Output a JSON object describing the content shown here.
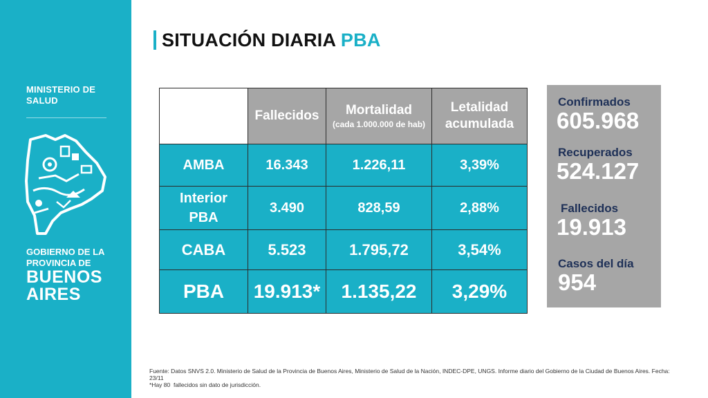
{
  "sidebar": {
    "ministry": [
      "MINISTERIO DE",
      "SALUD"
    ],
    "government_small": [
      "GOBIERNO DE LA",
      "PROVINCIA DE"
    ],
    "government_big": [
      "BUENOS",
      "AIRES"
    ]
  },
  "title": {
    "main": "SITUACIÓN DIARIA",
    "accent": "PBA"
  },
  "table": {
    "headers": {
      "fallecidos": "Fallecidos",
      "mortalidad": "Mortalidad",
      "mortalidad_sub": "(cada 1.000.000 de hab)",
      "letalidad": "Letalidad acumulada"
    },
    "rows": [
      {
        "region": "AMBA",
        "fallecidos": "16.343",
        "mortalidad": "1.226,11",
        "letalidad": "3,39%"
      },
      {
        "region": "Interior PBA",
        "fallecidos": "3.490",
        "mortalidad": "828,59",
        "letalidad": "2,88%"
      },
      {
        "region": "CABA",
        "fallecidos": "5.523",
        "mortalidad": "1.795,72",
        "letalidad": "3,54%"
      },
      {
        "region": "PBA",
        "fallecidos": "19.913*",
        "mortalidad": "1.135,22",
        "letalidad": "3,29%"
      }
    ]
  },
  "summary": {
    "confirmados_label": "Confirmados",
    "confirmados_value": "605.968",
    "recuperados_label": "Recuperados",
    "recuperados_value": "524.127",
    "fallecidos_label": "Fallecidos",
    "fallecidos_value": "19.913",
    "casos_label": "Casos del día",
    "casos_value": "954"
  },
  "footnote": {
    "source": "Fuente: Datos SNVS 2.0. Ministerio de Salud de la Provincia de Buenos Aires, Ministerio de Salud de la Nación, INDEC-DPE, UNGS. Informe diario del Gobierno de la Ciudad de Buenos Aires. Fecha: 23/11",
    "note": "*Hay 80  fallecidos sin dato de jurisdicción."
  },
  "colors": {
    "brand": "#1ab0c7",
    "header_gray": "#a6a6a6",
    "summary_label": "#1e3057"
  }
}
